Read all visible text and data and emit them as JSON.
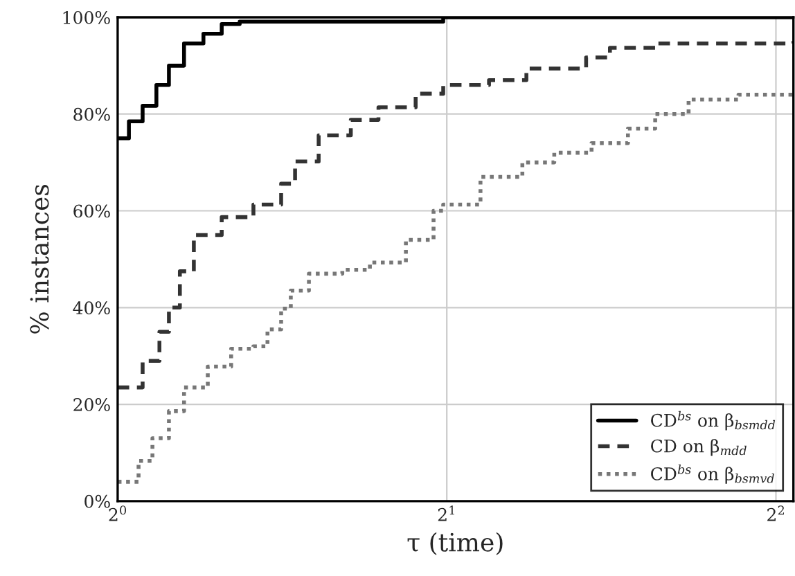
{
  "chart_data": {
    "type": "step",
    "xlabel": "τ (time)",
    "ylabel": "% instances",
    "log": "x",
    "xlim": [
      1,
      4.15
    ],
    "ylim": [
      0,
      100
    ],
    "xticks": [
      {
        "value": 1,
        "label": "2$^{0}$"
      },
      {
        "value": 2,
        "label": "2$^{1}$"
      },
      {
        "value": 4,
        "label": "2$^{2}$"
      }
    ],
    "yticks": [
      {
        "value": 0,
        "label": "0%"
      },
      {
        "value": 20,
        "label": "20%"
      },
      {
        "value": 40,
        "label": "40%"
      },
      {
        "value": 60,
        "label": "60%"
      },
      {
        "value": 80,
        "label": "80%"
      },
      {
        "value": 100,
        "label": "100%"
      }
    ],
    "grid": true,
    "legend": "bottom right",
    "series": [
      {
        "name": "CD$^{bs}$ on β$_{bsmdd}$",
        "color": "#000000",
        "line_style": "solid",
        "x": [
          1,
          1.006,
          1.024,
          1.054,
          1.085,
          1.114,
          1.15,
          1.198,
          1.245,
          1.293,
          1.985,
          4.15
        ],
        "values": [
          75,
          75,
          78.5,
          81.7,
          86,
          90,
          94.6,
          96.6,
          98.6,
          99.1,
          100,
          100
        ]
      },
      {
        "name": "CD on β$_{mdd}$",
        "color": "#333333",
        "line_style": "dashed",
        "x": [
          1,
          1.006,
          1.054,
          1.092,
          1.114,
          1.14,
          1.174,
          1.245,
          1.331,
          1.411,
          1.453,
          1.527,
          1.634,
          1.732,
          1.873,
          1.985,
          2.186,
          2.365,
          2.682,
          2.82,
          3.102,
          4.15
        ],
        "values": [
          23.5,
          23.5,
          29,
          35,
          40,
          47.5,
          55,
          58.7,
          61.3,
          65.6,
          70.2,
          75.6,
          78.8,
          81.4,
          84.2,
          86,
          87,
          89.4,
          91.7,
          93.7,
          94.6,
          95.1
        ]
      },
      {
        "name": "CD$^{bs}$ on β$_{bsmvd}$",
        "color": "#777777",
        "line_style": "dotted",
        "x": [
          1,
          1.009,
          1.045,
          1.076,
          1.114,
          1.15,
          1.209,
          1.27,
          1.331,
          1.371,
          1.411,
          1.44,
          1.496,
          1.605,
          1.701,
          1.835,
          1.945,
          1.985,
          2.147,
          2.345,
          2.508,
          2.713,
          2.929,
          3.102,
          3.328,
          3.697,
          4.15
        ],
        "values": [
          4,
          4,
          8.3,
          13,
          18.6,
          23.5,
          27.8,
          31.5,
          32,
          35.5,
          39.8,
          43.5,
          47,
          47.8,
          49.3,
          54,
          60,
          61.3,
          67,
          70,
          72,
          74,
          77,
          80,
          83,
          84,
          84
        ]
      }
    ]
  }
}
